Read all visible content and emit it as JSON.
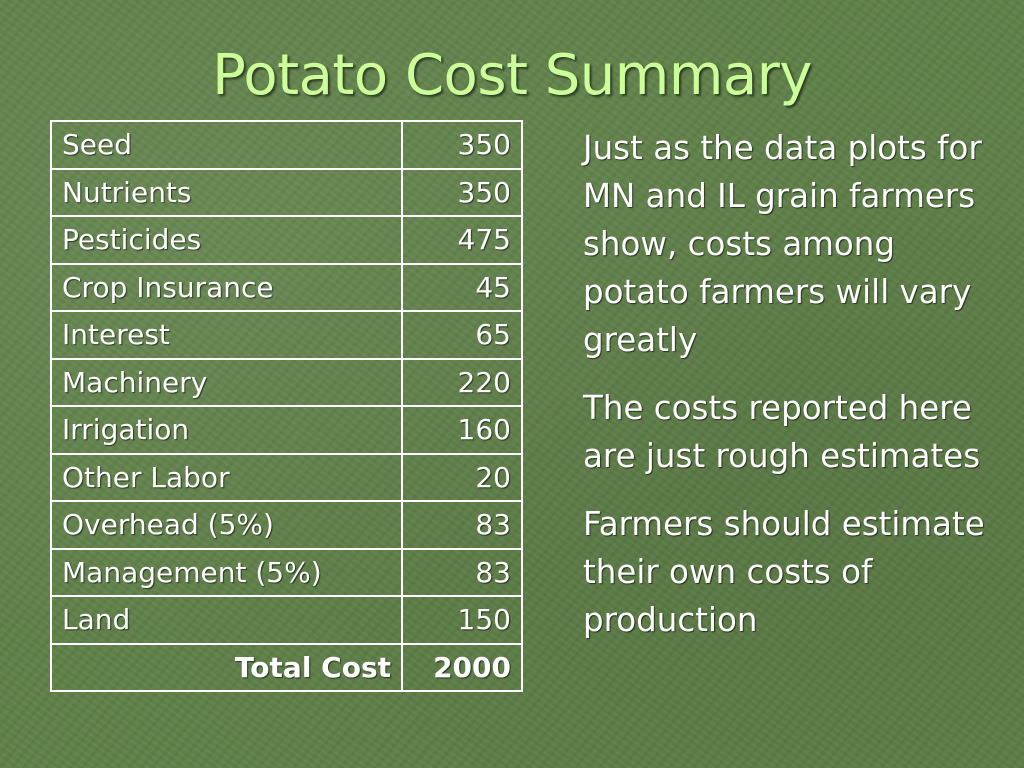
{
  "slide": {
    "title": "Potato Cost Summary"
  },
  "table": {
    "rows": [
      {
        "item": "Seed",
        "cost": "350"
      },
      {
        "item": "Nutrients",
        "cost": "350"
      },
      {
        "item": "Pesticides",
        "cost": "475"
      },
      {
        "item": "Crop Insurance",
        "cost": "45"
      },
      {
        "item": "Interest",
        "cost": "65"
      },
      {
        "item": "Machinery",
        "cost": "220"
      },
      {
        "item": "Irrigation",
        "cost": "160"
      },
      {
        "item": "Other Labor",
        "cost": "20"
      },
      {
        "item": "Overhead (5%)",
        "cost": "83"
      },
      {
        "item": "Management (5%)",
        "cost": "83"
      },
      {
        "item": "Land",
        "cost": "150"
      }
    ],
    "total": {
      "item": "Total Cost",
      "cost": "2000"
    }
  },
  "notes": {
    "paragraphs": [
      "Just as the data plots for MN and IL grain farmers show, costs among potato farmers will vary greatly",
      "The costs reported here are just rough estimates",
      "Farmers should estimate their own costs of production"
    ]
  },
  "colors": {
    "background": "#5f8048",
    "title": "#ccff99",
    "text": "#ffffff",
    "table_border": "#ffffff"
  }
}
